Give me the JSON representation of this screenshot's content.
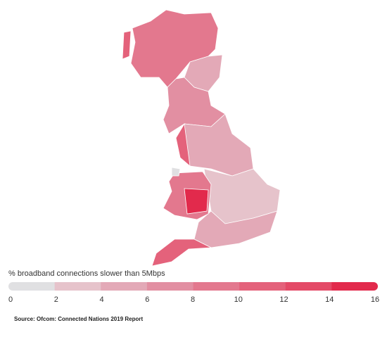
{
  "legend": {
    "title": "% broadband connections slower than 5Mbps",
    "ticks": [
      0,
      2,
      4,
      6,
      8,
      10,
      12,
      14,
      16
    ],
    "colors": [
      "#e0e0e2",
      "#e6c3cb",
      "#e3a9b7",
      "#e28fa2",
      "#e3788e",
      "#e4627b",
      "#e44a67",
      "#e22a4c"
    ]
  },
  "source": "Source: Ofcom: Connected Nations 2019 Report"
}
